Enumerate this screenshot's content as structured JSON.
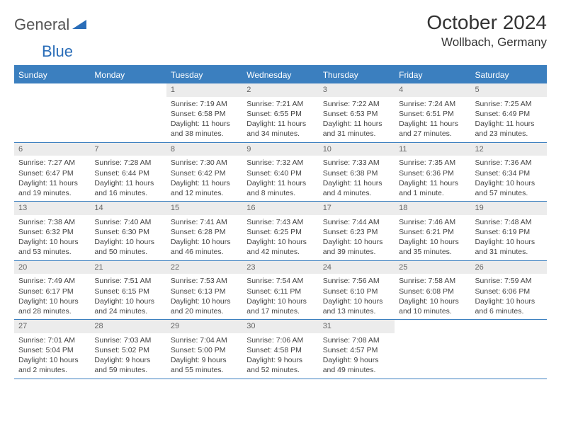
{
  "brand": {
    "part1": "General",
    "part2": "Blue"
  },
  "title": {
    "month": "October 2024",
    "location": "Wollbach, Germany"
  },
  "colors": {
    "accent": "#3b7fbf",
    "header_bg": "#3b7fbf",
    "header_text": "#ffffff",
    "daynum_bg": "#ececec",
    "daynum_text": "#666666",
    "body_text": "#444444",
    "logo_gray": "#555555",
    "logo_blue": "#2a6db8"
  },
  "weekdays": [
    "Sunday",
    "Monday",
    "Tuesday",
    "Wednesday",
    "Thursday",
    "Friday",
    "Saturday"
  ],
  "weeks": [
    [
      {
        "n": "",
        "sr": "",
        "ss": "",
        "dl": ""
      },
      {
        "n": "",
        "sr": "",
        "ss": "",
        "dl": ""
      },
      {
        "n": "1",
        "sr": "Sunrise: 7:19 AM",
        "ss": "Sunset: 6:58 PM",
        "dl": "Daylight: 11 hours and 38 minutes."
      },
      {
        "n": "2",
        "sr": "Sunrise: 7:21 AM",
        "ss": "Sunset: 6:55 PM",
        "dl": "Daylight: 11 hours and 34 minutes."
      },
      {
        "n": "3",
        "sr": "Sunrise: 7:22 AM",
        "ss": "Sunset: 6:53 PM",
        "dl": "Daylight: 11 hours and 31 minutes."
      },
      {
        "n": "4",
        "sr": "Sunrise: 7:24 AM",
        "ss": "Sunset: 6:51 PM",
        "dl": "Daylight: 11 hours and 27 minutes."
      },
      {
        "n": "5",
        "sr": "Sunrise: 7:25 AM",
        "ss": "Sunset: 6:49 PM",
        "dl": "Daylight: 11 hours and 23 minutes."
      }
    ],
    [
      {
        "n": "6",
        "sr": "Sunrise: 7:27 AM",
        "ss": "Sunset: 6:47 PM",
        "dl": "Daylight: 11 hours and 19 minutes."
      },
      {
        "n": "7",
        "sr": "Sunrise: 7:28 AM",
        "ss": "Sunset: 6:44 PM",
        "dl": "Daylight: 11 hours and 16 minutes."
      },
      {
        "n": "8",
        "sr": "Sunrise: 7:30 AM",
        "ss": "Sunset: 6:42 PM",
        "dl": "Daylight: 11 hours and 12 minutes."
      },
      {
        "n": "9",
        "sr": "Sunrise: 7:32 AM",
        "ss": "Sunset: 6:40 PM",
        "dl": "Daylight: 11 hours and 8 minutes."
      },
      {
        "n": "10",
        "sr": "Sunrise: 7:33 AM",
        "ss": "Sunset: 6:38 PM",
        "dl": "Daylight: 11 hours and 4 minutes."
      },
      {
        "n": "11",
        "sr": "Sunrise: 7:35 AM",
        "ss": "Sunset: 6:36 PM",
        "dl": "Daylight: 11 hours and 1 minute."
      },
      {
        "n": "12",
        "sr": "Sunrise: 7:36 AM",
        "ss": "Sunset: 6:34 PM",
        "dl": "Daylight: 10 hours and 57 minutes."
      }
    ],
    [
      {
        "n": "13",
        "sr": "Sunrise: 7:38 AM",
        "ss": "Sunset: 6:32 PM",
        "dl": "Daylight: 10 hours and 53 minutes."
      },
      {
        "n": "14",
        "sr": "Sunrise: 7:40 AM",
        "ss": "Sunset: 6:30 PM",
        "dl": "Daylight: 10 hours and 50 minutes."
      },
      {
        "n": "15",
        "sr": "Sunrise: 7:41 AM",
        "ss": "Sunset: 6:28 PM",
        "dl": "Daylight: 10 hours and 46 minutes."
      },
      {
        "n": "16",
        "sr": "Sunrise: 7:43 AM",
        "ss": "Sunset: 6:25 PM",
        "dl": "Daylight: 10 hours and 42 minutes."
      },
      {
        "n": "17",
        "sr": "Sunrise: 7:44 AM",
        "ss": "Sunset: 6:23 PM",
        "dl": "Daylight: 10 hours and 39 minutes."
      },
      {
        "n": "18",
        "sr": "Sunrise: 7:46 AM",
        "ss": "Sunset: 6:21 PM",
        "dl": "Daylight: 10 hours and 35 minutes."
      },
      {
        "n": "19",
        "sr": "Sunrise: 7:48 AM",
        "ss": "Sunset: 6:19 PM",
        "dl": "Daylight: 10 hours and 31 minutes."
      }
    ],
    [
      {
        "n": "20",
        "sr": "Sunrise: 7:49 AM",
        "ss": "Sunset: 6:17 PM",
        "dl": "Daylight: 10 hours and 28 minutes."
      },
      {
        "n": "21",
        "sr": "Sunrise: 7:51 AM",
        "ss": "Sunset: 6:15 PM",
        "dl": "Daylight: 10 hours and 24 minutes."
      },
      {
        "n": "22",
        "sr": "Sunrise: 7:53 AM",
        "ss": "Sunset: 6:13 PM",
        "dl": "Daylight: 10 hours and 20 minutes."
      },
      {
        "n": "23",
        "sr": "Sunrise: 7:54 AM",
        "ss": "Sunset: 6:11 PM",
        "dl": "Daylight: 10 hours and 17 minutes."
      },
      {
        "n": "24",
        "sr": "Sunrise: 7:56 AM",
        "ss": "Sunset: 6:10 PM",
        "dl": "Daylight: 10 hours and 13 minutes."
      },
      {
        "n": "25",
        "sr": "Sunrise: 7:58 AM",
        "ss": "Sunset: 6:08 PM",
        "dl": "Daylight: 10 hours and 10 minutes."
      },
      {
        "n": "26",
        "sr": "Sunrise: 7:59 AM",
        "ss": "Sunset: 6:06 PM",
        "dl": "Daylight: 10 hours and 6 minutes."
      }
    ],
    [
      {
        "n": "27",
        "sr": "Sunrise: 7:01 AM",
        "ss": "Sunset: 5:04 PM",
        "dl": "Daylight: 10 hours and 2 minutes."
      },
      {
        "n": "28",
        "sr": "Sunrise: 7:03 AM",
        "ss": "Sunset: 5:02 PM",
        "dl": "Daylight: 9 hours and 59 minutes."
      },
      {
        "n": "29",
        "sr": "Sunrise: 7:04 AM",
        "ss": "Sunset: 5:00 PM",
        "dl": "Daylight: 9 hours and 55 minutes."
      },
      {
        "n": "30",
        "sr": "Sunrise: 7:06 AM",
        "ss": "Sunset: 4:58 PM",
        "dl": "Daylight: 9 hours and 52 minutes."
      },
      {
        "n": "31",
        "sr": "Sunrise: 7:08 AM",
        "ss": "Sunset: 4:57 PM",
        "dl": "Daylight: 9 hours and 49 minutes."
      },
      {
        "n": "",
        "sr": "",
        "ss": "",
        "dl": ""
      },
      {
        "n": "",
        "sr": "",
        "ss": "",
        "dl": ""
      }
    ]
  ]
}
